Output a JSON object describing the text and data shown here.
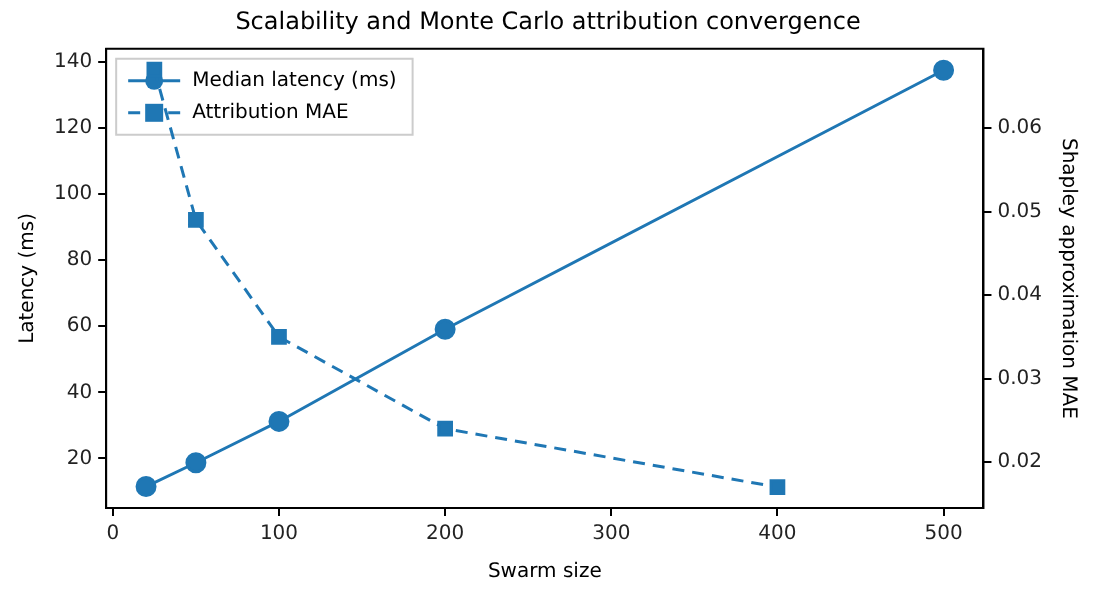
{
  "chart_data": {
    "type": "line",
    "title": "Scalability and Monte Carlo attribution convergence",
    "xlabel": "Swarm size",
    "ylabel": "Latency (ms)",
    "y2label": "Shapley approximation MAE",
    "series": [
      {
        "name": "Median latency (ms)",
        "color": "#1f77b4",
        "x": [
          20,
          50,
          100,
          200,
          500
        ],
        "values": [
          11.5,
          18.7,
          31.2,
          59.1,
          137.5
        ],
        "marker": "circle",
        "line_style": "solid"
      },
      {
        "name": "Attribution MAE",
        "color": "#1f77b4",
        "x": [
          25,
          50,
          100,
          200,
          400
        ],
        "values": [
          0.067,
          0.049,
          0.035,
          0.024,
          0.017
        ],
        "marker": "square",
        "line_style": "dashed",
        "axis": "y2"
      }
    ],
    "xlim": [
      -4,
      524
    ],
    "xticks": [
      0,
      100,
      200,
      300,
      400,
      500
    ],
    "ylim": [
      5,
      144
    ],
    "yticks": [
      20,
      40,
      60,
      80,
      100,
      120,
      140
    ],
    "y2lim": [
      0.0145,
      0.0695
    ],
    "y2ticks": [
      0.02,
      0.03,
      0.04,
      0.05,
      0.06
    ],
    "legend": "top left",
    "grid": false
  }
}
